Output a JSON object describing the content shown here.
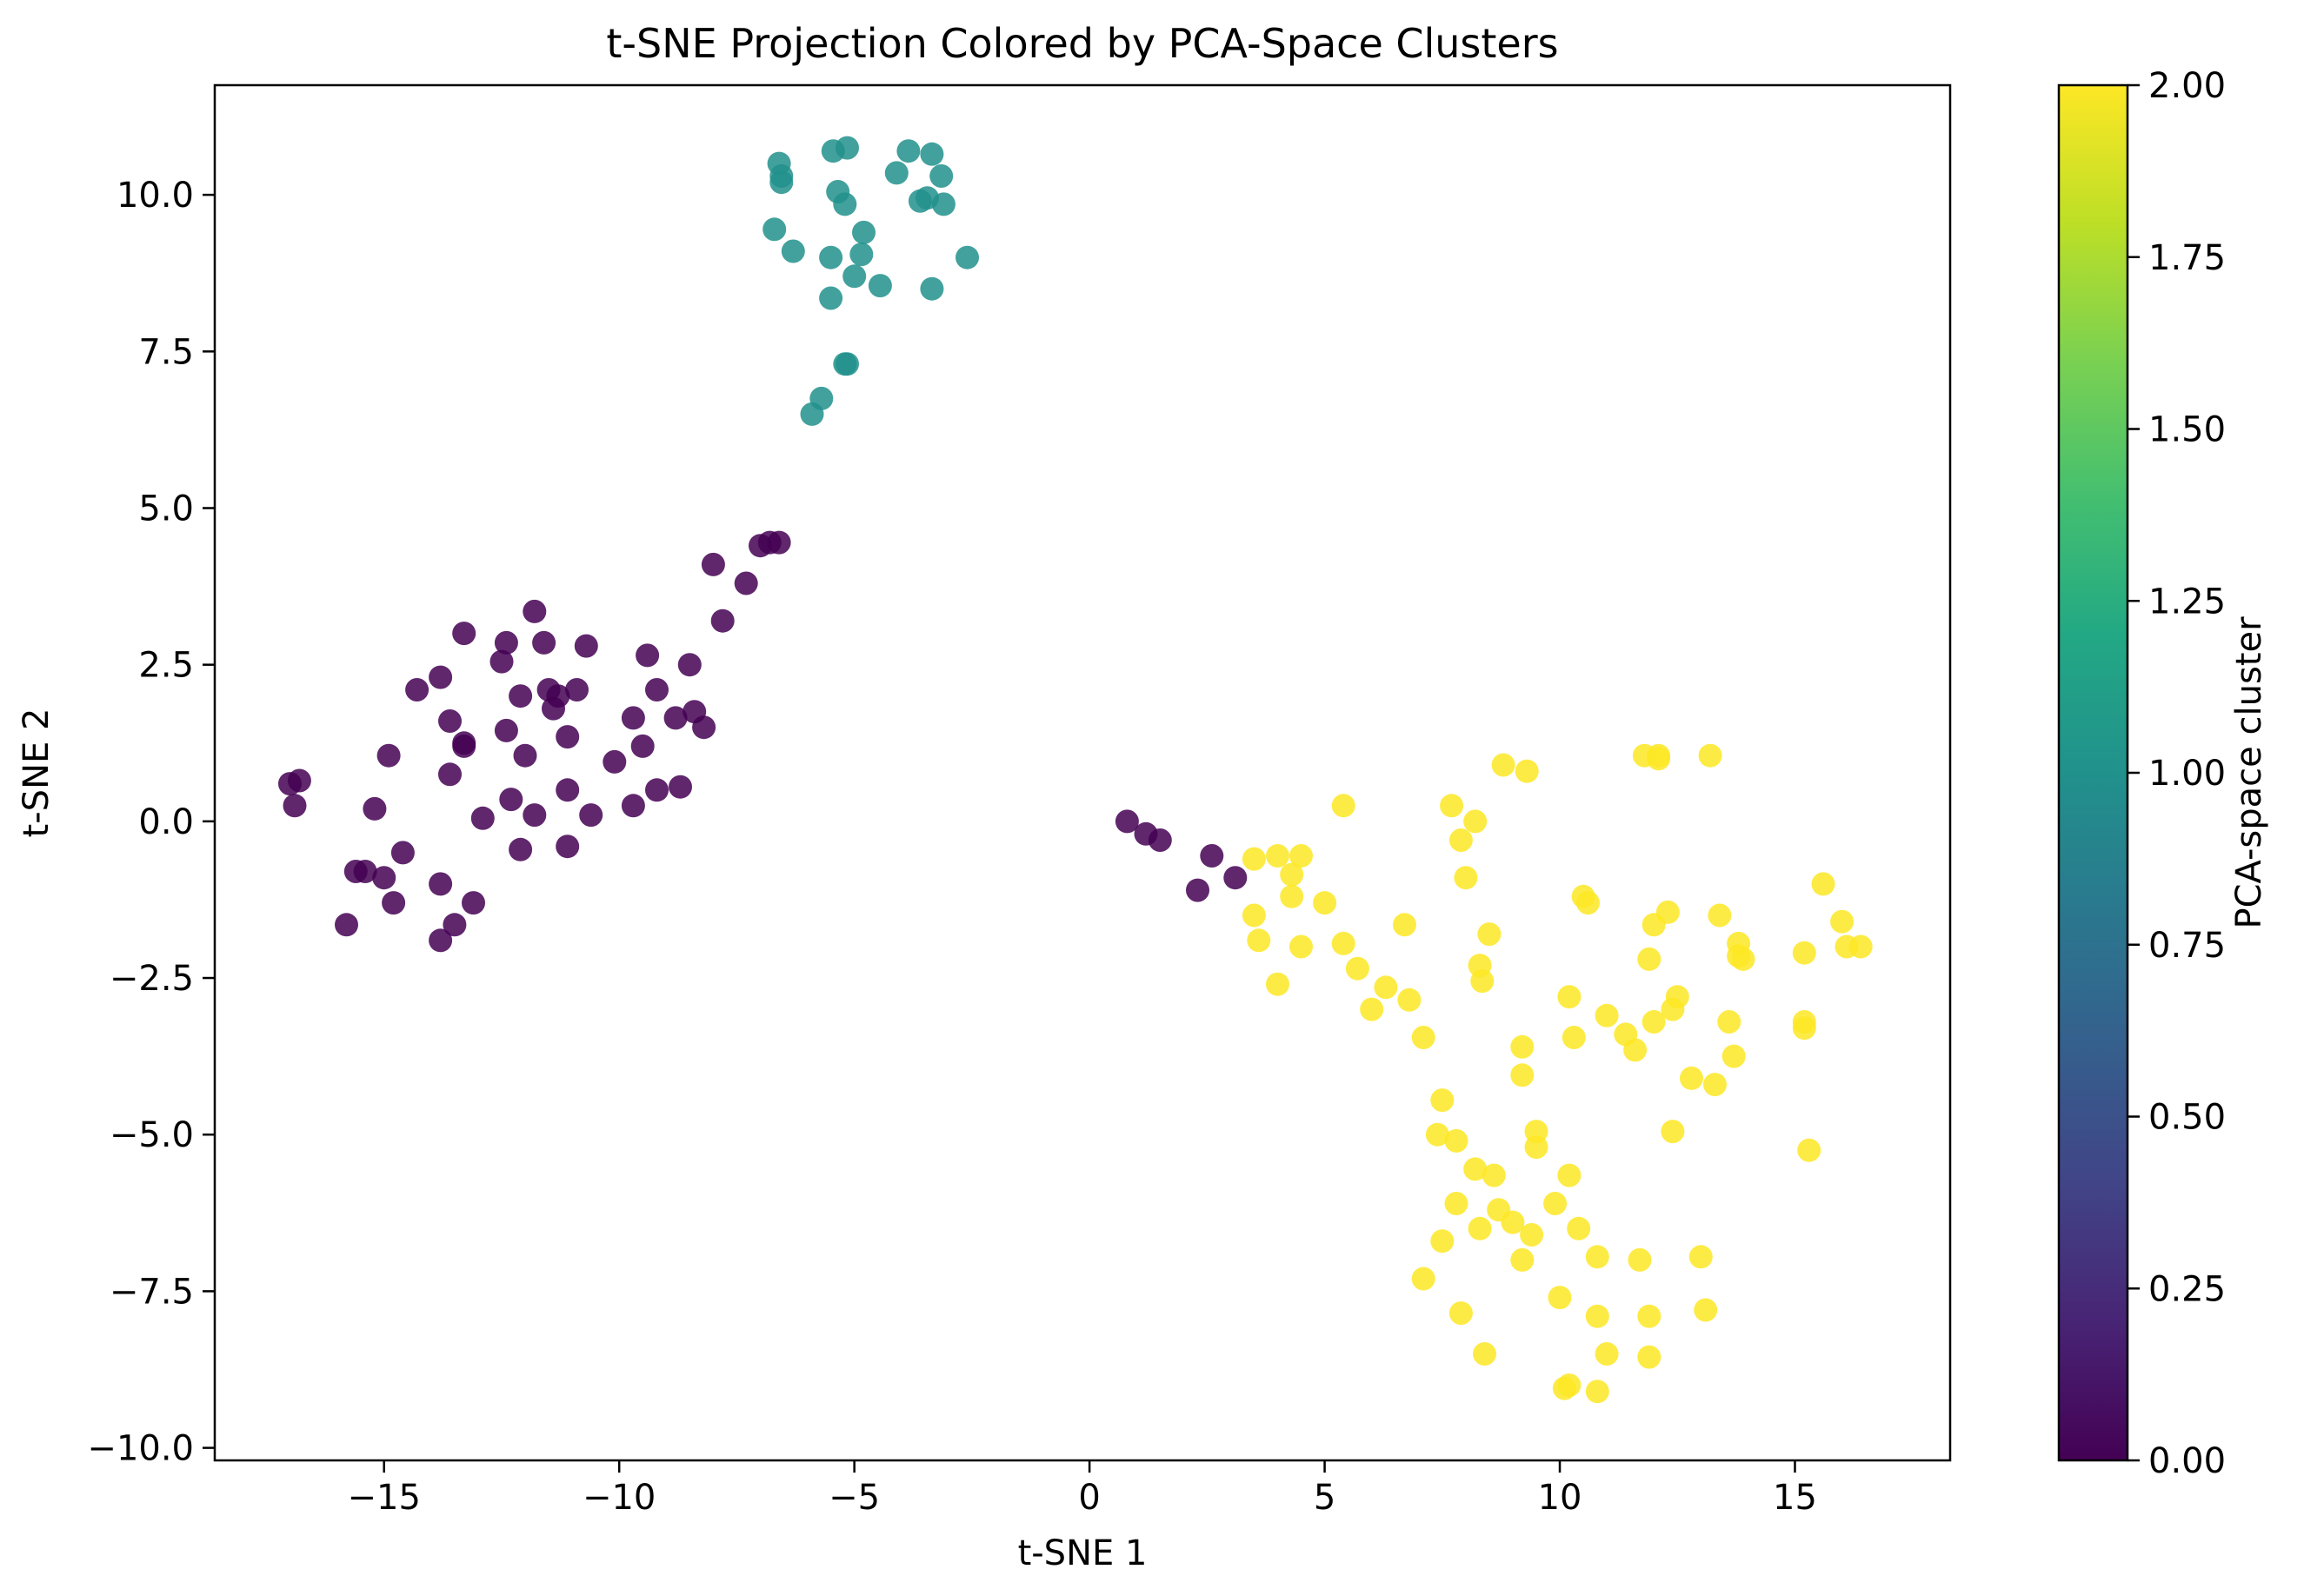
{
  "chart_data": {
    "type": "scatter",
    "title": "t-SNE Projection Colored by PCA-Space Clusters",
    "xlabel": "t-SNE 1",
    "ylabel": "t-SNE 2",
    "xlim": [
      -18.6,
      18.3
    ],
    "ylim": [
      -10.2,
      11.75
    ],
    "xticks": [
      -15,
      -10,
      -5,
      0,
      5,
      10,
      15
    ],
    "xtick_labels": [
      "−15",
      "−10",
      "−5",
      "0",
      "5",
      "10",
      "15"
    ],
    "yticks": [
      -10,
      -7.5,
      -5,
      -2.5,
      0,
      2.5,
      5,
      7.5,
      10
    ],
    "ytick_labels": [
      "−10.0",
      "−7.5",
      "−5.0",
      "−2.5",
      "0.0",
      "2.5",
      "5.0",
      "7.5",
      "10.0"
    ],
    "colorbar": {
      "label": "PCA-space cluster",
      "colormap": "viridis",
      "range": [
        0,
        2
      ],
      "ticks": [
        0,
        0.25,
        0.5,
        0.75,
        1,
        1.25,
        1.5,
        1.75,
        2
      ],
      "tick_labels": [
        "0.00",
        "0.25",
        "0.50",
        "0.75",
        "1.00",
        "1.25",
        "1.50",
        "1.75",
        "2.00"
      ]
    },
    "grid": false,
    "colors": {
      "cluster0": "#440154",
      "cluster1": "#21918c",
      "cluster2": "#fde725"
    },
    "series": [
      {
        "cluster": 0,
        "points": [
          [
            -17.0,
            0.6
          ],
          [
            -16.8,
            0.65
          ],
          [
            -16.9,
            0.25
          ],
          [
            -15.8,
            -1.65
          ],
          [
            -15.6,
            -0.8
          ],
          [
            -15.4,
            -0.8
          ],
          [
            -15.2,
            0.2
          ],
          [
            -15.0,
            -0.9
          ],
          [
            -14.9,
            1.05
          ],
          [
            -14.8,
            -1.3
          ],
          [
            -14.6,
            -0.5
          ],
          [
            -14.3,
            2.1
          ],
          [
            -13.8,
            2.3
          ],
          [
            -13.8,
            -1.0
          ],
          [
            -13.8,
            -1.9
          ],
          [
            -13.6,
            1.6
          ],
          [
            -13.6,
            0.75
          ],
          [
            -13.5,
            -1.65
          ],
          [
            -13.3,
            1.2
          ],
          [
            -13.3,
            1.25
          ],
          [
            -13.3,
            3.0
          ],
          [
            -13.1,
            -1.3
          ],
          [
            -12.9,
            0.05
          ],
          [
            -12.5,
            2.55
          ],
          [
            -12.4,
            2.85
          ],
          [
            -12.4,
            1.45
          ],
          [
            -12.3,
            0.35
          ],
          [
            -12.1,
            2.0
          ],
          [
            -12.1,
            -0.45
          ],
          [
            -12.0,
            1.05
          ],
          [
            -11.8,
            3.35
          ],
          [
            -11.8,
            0.1
          ],
          [
            -11.6,
            2.85
          ],
          [
            -11.5,
            2.1
          ],
          [
            -11.4,
            1.8
          ],
          [
            -11.3,
            2.0
          ],
          [
            -11.1,
            1.35
          ],
          [
            -11.1,
            0.5
          ],
          [
            -11.1,
            -0.4
          ],
          [
            -10.9,
            2.1
          ],
          [
            -10.7,
            2.8
          ],
          [
            -10.6,
            0.1
          ],
          [
            -10.1,
            0.95
          ],
          [
            -9.7,
            0.25
          ],
          [
            -9.7,
            1.65
          ],
          [
            -9.5,
            1.2
          ],
          [
            -9.4,
            2.65
          ],
          [
            -9.2,
            0.5
          ],
          [
            -9.2,
            2.1
          ],
          [
            -8.8,
            1.65
          ],
          [
            -8.7,
            0.55
          ],
          [
            -8.5,
            2.5
          ],
          [
            -8.4,
            1.75
          ],
          [
            -8.2,
            1.5
          ],
          [
            -8.0,
            4.1
          ],
          [
            -7.8,
            3.2
          ],
          [
            -7.3,
            3.8
          ],
          [
            -7.0,
            4.4
          ],
          [
            -6.8,
            4.45
          ],
          [
            -6.6,
            4.45
          ],
          [
            0.8,
            0.0
          ],
          [
            1.2,
            -0.2
          ],
          [
            1.5,
            -0.3
          ],
          [
            2.3,
            -1.1
          ],
          [
            2.6,
            -0.55
          ],
          [
            3.1,
            -0.9
          ]
        ]
      },
      {
        "cluster": 1,
        "points": [
          [
            -6.7,
            9.45
          ],
          [
            -6.6,
            10.5
          ],
          [
            -6.55,
            10.3
          ],
          [
            -6.55,
            10.2
          ],
          [
            -6.3,
            9.1
          ],
          [
            -5.9,
            6.5
          ],
          [
            -5.7,
            6.75
          ],
          [
            -5.5,
            9.0
          ],
          [
            -5.5,
            8.35
          ],
          [
            -5.45,
            10.7
          ],
          [
            -5.35,
            10.05
          ],
          [
            -5.2,
            7.3
          ],
          [
            -5.2,
            9.85
          ],
          [
            -5.15,
            10.75
          ],
          [
            -5.15,
            7.3
          ],
          [
            -5.0,
            8.7
          ],
          [
            -4.85,
            9.05
          ],
          [
            -4.8,
            9.4
          ],
          [
            -4.45,
            8.55
          ],
          [
            -4.1,
            10.35
          ],
          [
            -3.85,
            10.7
          ],
          [
            -3.6,
            9.9
          ],
          [
            -3.45,
            9.95
          ],
          [
            -3.35,
            10.65
          ],
          [
            -3.35,
            8.5
          ],
          [
            -3.15,
            10.3
          ],
          [
            -3.1,
            9.85
          ],
          [
            -2.6,
            9.0
          ]
        ]
      },
      {
        "cluster": 2,
        "points": [
          [
            3.5,
            -1.5
          ],
          [
            3.5,
            -0.6
          ],
          [
            3.6,
            -1.9
          ],
          [
            4.0,
            -0.55
          ],
          [
            4.0,
            -2.6
          ],
          [
            4.3,
            -1.2
          ],
          [
            4.3,
            -0.85
          ],
          [
            4.5,
            -2.0
          ],
          [
            4.5,
            -0.55
          ],
          [
            5.0,
            -1.3
          ],
          [
            5.4,
            0.25
          ],
          [
            5.4,
            -1.95
          ],
          [
            5.7,
            -2.35
          ],
          [
            6.0,
            -3.0
          ],
          [
            6.3,
            -2.65
          ],
          [
            6.7,
            -1.65
          ],
          [
            6.8,
            -2.85
          ],
          [
            7.1,
            -3.45
          ],
          [
            7.1,
            -7.3
          ],
          [
            7.4,
            -5.0
          ],
          [
            7.5,
            -4.45
          ],
          [
            7.5,
            -6.7
          ],
          [
            7.7,
            0.25
          ],
          [
            7.8,
            -5.1
          ],
          [
            7.8,
            -6.1
          ],
          [
            7.9,
            -7.85
          ],
          [
            7.9,
            -0.3
          ],
          [
            8.0,
            -0.9
          ],
          [
            8.2,
            0.0
          ],
          [
            8.2,
            -5.55
          ],
          [
            8.3,
            -2.3
          ],
          [
            8.35,
            -2.55
          ],
          [
            8.3,
            -6.5
          ],
          [
            8.4,
            -8.5
          ],
          [
            8.5,
            -1.8
          ],
          [
            8.6,
            -5.65
          ],
          [
            8.7,
            -6.2
          ],
          [
            8.8,
            0.9
          ],
          [
            9.0,
            -6.4
          ],
          [
            9.2,
            -7.0
          ],
          [
            9.2,
            -3.6
          ],
          [
            9.2,
            -4.05
          ],
          [
            9.3,
            0.8
          ],
          [
            9.4,
            -6.6
          ],
          [
            9.5,
            -5.2
          ],
          [
            9.5,
            -4.95
          ],
          [
            9.9,
            -6.1
          ],
          [
            10.0,
            -7.6
          ],
          [
            10.1,
            -9.05
          ],
          [
            10.2,
            -9.0
          ],
          [
            10.2,
            -2.8
          ],
          [
            10.2,
            -5.65
          ],
          [
            10.3,
            -3.45
          ],
          [
            10.4,
            -6.5
          ],
          [
            10.5,
            -1.2
          ],
          [
            10.6,
            -1.3
          ],
          [
            10.8,
            -6.95
          ],
          [
            10.8,
            -7.9
          ],
          [
            10.8,
            -9.1
          ],
          [
            11.0,
            -3.1
          ],
          [
            11.0,
            -8.5
          ],
          [
            11.4,
            -3.4
          ],
          [
            11.6,
            -3.65
          ],
          [
            11.7,
            -7.0
          ],
          [
            11.8,
            1.05
          ],
          [
            11.9,
            -2.2
          ],
          [
            11.9,
            -7.9
          ],
          [
            11.9,
            -8.55
          ],
          [
            12.0,
            -1.65
          ],
          [
            12.0,
            -3.2
          ],
          [
            12.1,
            1.0
          ],
          [
            12.1,
            1.05
          ],
          [
            12.3,
            -1.45
          ],
          [
            12.4,
            -3.0
          ],
          [
            12.4,
            -4.95
          ],
          [
            12.5,
            -2.8
          ],
          [
            12.8,
            -4.1
          ],
          [
            13.0,
            -6.95
          ],
          [
            13.1,
            -7.8
          ],
          [
            13.2,
            1.05
          ],
          [
            13.3,
            -4.2
          ],
          [
            13.4,
            -1.5
          ],
          [
            13.6,
            -3.2
          ],
          [
            13.7,
            -3.75
          ],
          [
            13.8,
            -1.95
          ],
          [
            13.8,
            -2.15
          ],
          [
            13.9,
            -2.2
          ],
          [
            15.2,
            -2.1
          ],
          [
            15.2,
            -3.2
          ],
          [
            15.2,
            -3.3
          ],
          [
            15.3,
            -5.25
          ],
          [
            15.6,
            -1.0
          ],
          [
            16.0,
            -1.6
          ],
          [
            16.1,
            -2.0
          ],
          [
            16.4,
            -2.0
          ]
        ]
      }
    ]
  }
}
